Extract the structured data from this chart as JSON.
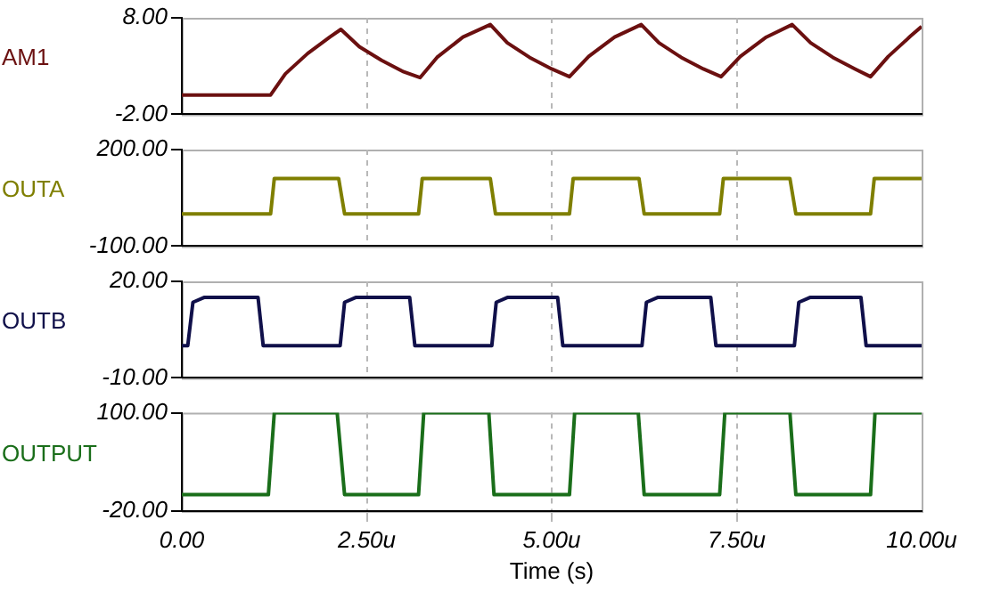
{
  "chart_data": [
    {
      "type": "line",
      "ylabel": "AM1",
      "xlim": [
        0,
        10
      ],
      "xticks": [
        {
          "value": 0,
          "label": null
        },
        {
          "value": 2.5,
          "label": null
        },
        {
          "value": 5,
          "label": null
        },
        {
          "value": 7.5,
          "label": null
        },
        {
          "value": 10,
          "label": null
        }
      ],
      "ylim": [
        -2,
        8
      ],
      "yticks": [
        {
          "value": -2,
          "label": "-2.00"
        },
        {
          "value": 8,
          "label": "8.00"
        }
      ],
      "grid": "x",
      "tick_labels": "y",
      "marker": "none",
      "series": [
        {
          "color": "#6b1010",
          "x": [
            0,
            1.2,
            1.4,
            1.7,
            2.0,
            2.15,
            2.4,
            2.7,
            3.0,
            3.22,
            3.45,
            3.8,
            4.17,
            4.4,
            4.7,
            5.0,
            5.24,
            5.5,
            5.85,
            6.21,
            6.45,
            6.75,
            7.05,
            7.29,
            7.55,
            7.9,
            8.25,
            8.5,
            8.8,
            9.1,
            9.31,
            9.55,
            9.85,
            10
          ],
          "values": [
            0,
            0,
            2.2,
            4.3,
            6.0,
            6.8,
            5.0,
            3.6,
            2.4,
            1.8,
            3.9,
            6.0,
            7.3,
            5.4,
            3.9,
            2.7,
            1.9,
            4.0,
            6.0,
            7.3,
            5.4,
            3.9,
            2.7,
            1.9,
            4.0,
            6.0,
            7.3,
            5.4,
            3.9,
            2.7,
            1.9,
            4.0,
            6.1,
            7.1
          ]
        }
      ]
    },
    {
      "type": "line",
      "ylabel": "OUTA",
      "xlim": [
        0,
        10
      ],
      "xticks": [
        {
          "value": 0,
          "label": null
        },
        {
          "value": 2.5,
          "label": null
        },
        {
          "value": 5,
          "label": null
        },
        {
          "value": 7.5,
          "label": null
        },
        {
          "value": 10,
          "label": null
        }
      ],
      "ylim": [
        -100,
        200
      ],
      "yticks": [
        {
          "value": -100,
          "label": "-100.00"
        },
        {
          "value": 200,
          "label": "200.00"
        }
      ],
      "grid": "x",
      "tick_labels": "y",
      "marker": "none",
      "series": [
        {
          "color": "#7f7f00",
          "x": [
            0,
            1.2,
            1.25,
            2.12,
            2.2,
            3.2,
            3.25,
            4.17,
            4.24,
            5.24,
            5.29,
            6.18,
            6.25,
            7.27,
            7.32,
            8.22,
            8.3,
            9.31,
            9.36,
            10
          ],
          "values": [
            0,
            0,
            110,
            110,
            0,
            0,
            110,
            110,
            0,
            0,
            110,
            110,
            0,
            0,
            110,
            110,
            0,
            0,
            110,
            110
          ]
        }
      ]
    },
    {
      "type": "line",
      "ylabel": "OUTB",
      "xlim": [
        0,
        10
      ],
      "xticks": [
        {
          "value": 0,
          "label": null
        },
        {
          "value": 2.5,
          "label": null
        },
        {
          "value": 5,
          "label": null
        },
        {
          "value": 7.5,
          "label": null
        },
        {
          "value": 10,
          "label": null
        }
      ],
      "ylim": [
        -10,
        20
      ],
      "yticks": [
        {
          "value": -10,
          "label": "-10.00"
        },
        {
          "value": 20,
          "label": "20.00"
        }
      ],
      "grid": "x",
      "tick_labels": "y",
      "marker": "none",
      "series": [
        {
          "color": "#10104a",
          "x": [
            0,
            0.08,
            0.15,
            0.3,
            1.03,
            1.1,
            2.14,
            2.2,
            2.35,
            3.08,
            3.15,
            4.19,
            4.25,
            4.4,
            5.08,
            5.15,
            6.22,
            6.28,
            6.43,
            7.15,
            7.22,
            8.28,
            8.34,
            8.49,
            9.18,
            9.25,
            10
          ],
          "values": [
            0,
            0,
            13.5,
            15,
            15,
            0,
            0,
            13.5,
            15,
            15,
            0,
            0,
            13.5,
            15,
            15,
            0,
            0,
            13.5,
            15,
            15,
            0,
            0,
            13.5,
            15,
            15,
            0,
            0
          ]
        }
      ]
    },
    {
      "type": "line",
      "ylabel": "OUTPUT",
      "xlabel": "Time (s)",
      "xlim": [
        0,
        10
      ],
      "xticks": [
        {
          "value": 0,
          "label": "0.00"
        },
        {
          "value": 2.5,
          "label": "2.50u"
        },
        {
          "value": 5,
          "label": "5.00u"
        },
        {
          "value": 7.5,
          "label": "7.50u"
        },
        {
          "value": 10,
          "label": "10.00u"
        }
      ],
      "ylim": [
        -20,
        100
      ],
      "yticks": [
        {
          "value": -20,
          "label": "-20.00"
        },
        {
          "value": 100,
          "label": "100.00"
        }
      ],
      "grid": "x",
      "marker": "none",
      "series": [
        {
          "color": "#1a6e1a",
          "x": [
            0,
            1.17,
            1.25,
            1.7,
            2.1,
            2.2,
            3.2,
            3.27,
            3.7,
            4.15,
            4.22,
            5.24,
            5.31,
            5.75,
            6.17,
            6.25,
            7.27,
            7.34,
            7.75,
            8.22,
            8.3,
            9.31,
            9.37,
            9.75,
            10
          ],
          "values": [
            0,
            0,
            100,
            100,
            100,
            0,
            0,
            100,
            100,
            100,
            0,
            0,
            100,
            100,
            100,
            0,
            0,
            100,
            100,
            100,
            0,
            0,
            100,
            100,
            100
          ]
        }
      ]
    }
  ]
}
